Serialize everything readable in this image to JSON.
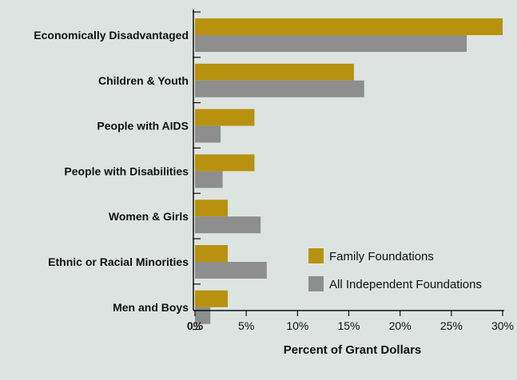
{
  "chart_data": {
    "type": "bar",
    "orientation": "horizontal",
    "categories": [
      "Economically Disadvantaged",
      "Children & Youth",
      "People with AIDS",
      "People with Disabilities",
      "Women & Girls",
      "Ethnic or Racial Minorities",
      "Men and Boys"
    ],
    "series": [
      {
        "name": "Family Foundations",
        "color": "#b8920f",
        "values": [
          30.0,
          15.5,
          5.8,
          5.8,
          3.2,
          3.2,
          3.2
        ]
      },
      {
        "name": "All Independent Foundations",
        "color": "#8e8e8e",
        "values": [
          26.5,
          16.5,
          2.5,
          2.7,
          6.4,
          7.0,
          1.5
        ]
      }
    ],
    "xlabel": "Percent of Grant Dollars",
    "ylabel": "",
    "xlim": [
      0,
      30
    ],
    "xticks": [
      "0%",
      "5%",
      "10%",
      "15%",
      "20%",
      "25%",
      "30%"
    ],
    "grid": false,
    "legend_position": "bottom-right"
  }
}
